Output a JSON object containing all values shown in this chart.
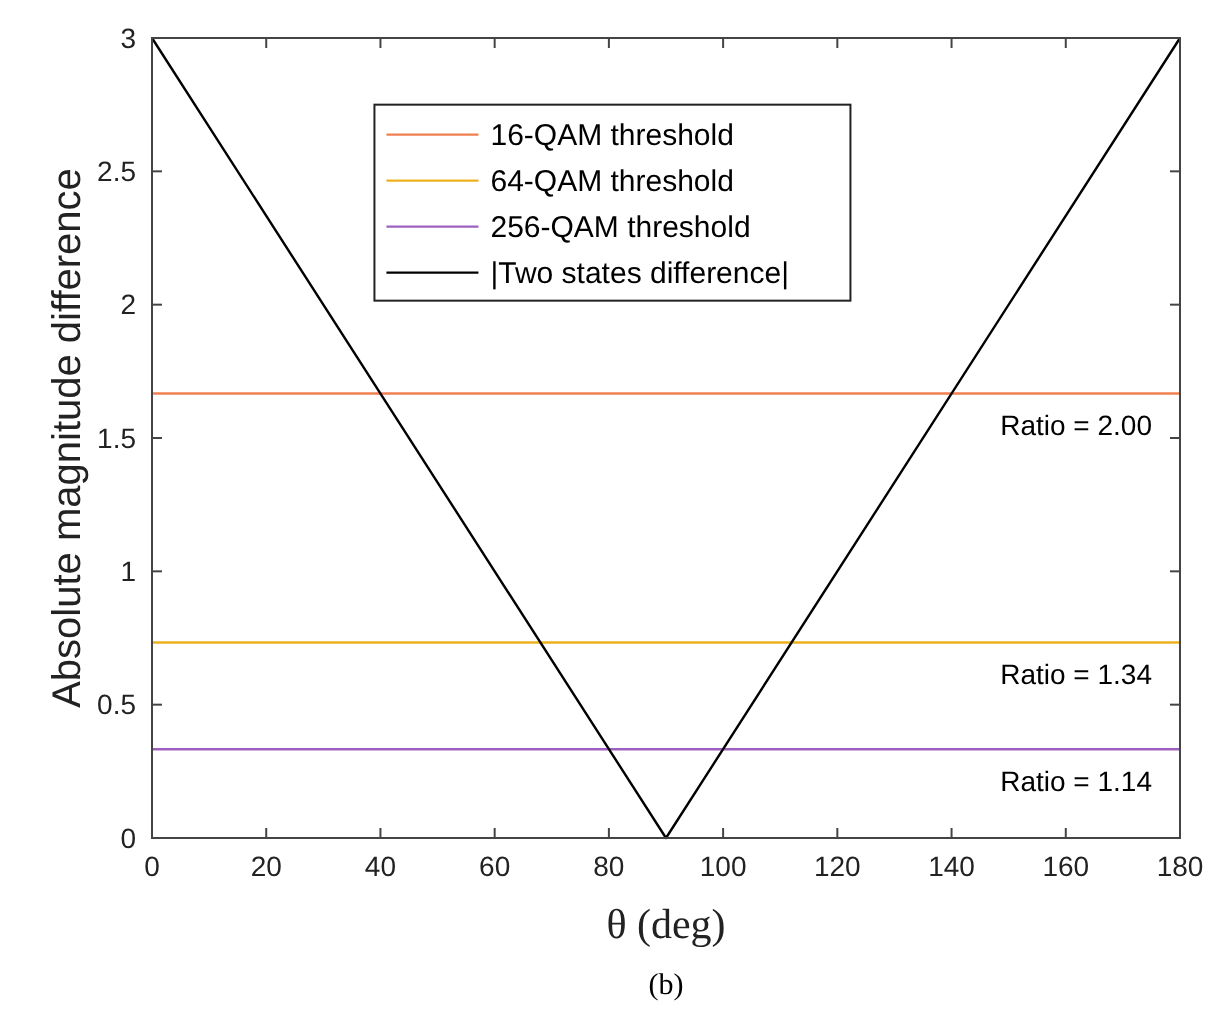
{
  "chart_data": {
    "type": "line",
    "xlabel": "θ (deg)",
    "ylabel": "Absolute magnitude difference",
    "xlim": [
      0,
      180
    ],
    "ylim": [
      0,
      3
    ],
    "xticks": [
      0,
      20,
      40,
      60,
      80,
      100,
      120,
      140,
      160,
      180
    ],
    "yticks": [
      0,
      0.5,
      1,
      1.5,
      2,
      2.5,
      3
    ],
    "grid": false,
    "legend": "top",
    "marker": "none",
    "line_style": "solid",
    "series": [
      {
        "name": "16-QAM threshold",
        "color": "#f08050",
        "x": [
          0,
          180
        ],
        "values": [
          1.667,
          1.667
        ]
      },
      {
        "name": "64-QAM threshold",
        "color": "#edb120",
        "x": [
          0,
          180
        ],
        "values": [
          0.733,
          0.733
        ]
      },
      {
        "name": "256-QAM threshold",
        "color": "#a060c0",
        "x": [
          0,
          180
        ],
        "values": [
          0.333,
          0.333
        ]
      },
      {
        "name": "|Two states difference|",
        "color": "#000000",
        "x": [
          0,
          90,
          180
        ],
        "values": [
          3,
          0,
          3
        ]
      }
    ],
    "annotations": [
      {
        "text": "Ratio = 2.00",
        "y": 1.667
      },
      {
        "text": "Ratio = 1.34",
        "y": 0.733
      },
      {
        "text": "Ratio = 1.14",
        "y": 0.333
      },
      "(b)"
    ]
  }
}
